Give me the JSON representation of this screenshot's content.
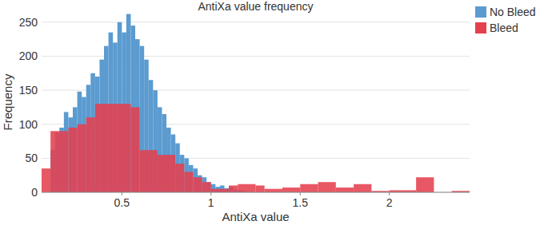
{
  "chart_data": {
    "type": "histogram",
    "title": "AntiXa value frequency",
    "x_label": "AntiXa value",
    "y_label": "Frequency",
    "xlim": [
      0.05,
      2.45
    ],
    "ylim": [
      0,
      265
    ],
    "xticks": [
      0.5,
      1,
      1.5,
      2
    ],
    "yticks": [
      0,
      50,
      100,
      150,
      200,
      250
    ],
    "grid": true,
    "legend": "top-right",
    "series": [
      {
        "name": "No Bleed",
        "color": "#5b9bd0",
        "bins": [
          0.1,
          0.125,
          0.15,
          0.175,
          0.2,
          0.225,
          0.25,
          0.275,
          0.3,
          0.325,
          0.35,
          0.375,
          0.4,
          0.425,
          0.45,
          0.475,
          0.5,
          0.525,
          0.55,
          0.575,
          0.6,
          0.625,
          0.65,
          0.675,
          0.7,
          0.725,
          0.75,
          0.775,
          0.8,
          0.825,
          0.85,
          0.875,
          0.9,
          0.925,
          0.95,
          0.975,
          1.0,
          1.025,
          1.05,
          1.075,
          1.1,
          1.125,
          1.15,
          1.175,
          1.2
        ],
        "values": [
          62,
          88,
          95,
          118,
          110,
          125,
          148,
          140,
          158,
          175,
          170,
          195,
          215,
          235,
          220,
          250,
          235,
          262,
          245,
          225,
          215,
          195,
          165,
          150,
          125,
          115,
          95,
          85,
          72,
          55,
          50,
          40,
          35,
          25,
          22,
          15,
          12,
          8,
          10,
          6,
          8,
          4,
          3,
          2
        ]
      },
      {
        "name": "Bleed",
        "color": "#e5404e",
        "bins": [
          0.05,
          0.1,
          0.2,
          0.25,
          0.3,
          0.35,
          0.4,
          0.55,
          0.6,
          0.7,
          0.8,
          0.85,
          0.9,
          0.95,
          1.0,
          1.1,
          1.15,
          1.25,
          1.3,
          1.4,
          1.5,
          1.6,
          1.7,
          1.8,
          1.9,
          2.0,
          2.15,
          2.25,
          2.35,
          2.45
        ],
        "values": [
          35,
          90,
          95,
          100,
          110,
          130,
          130,
          125,
          62,
          55,
          42,
          30,
          22,
          15,
          5,
          10,
          12,
          10,
          5,
          7,
          12,
          15,
          7,
          12,
          2,
          3,
          22,
          0,
          2
        ]
      }
    ]
  }
}
